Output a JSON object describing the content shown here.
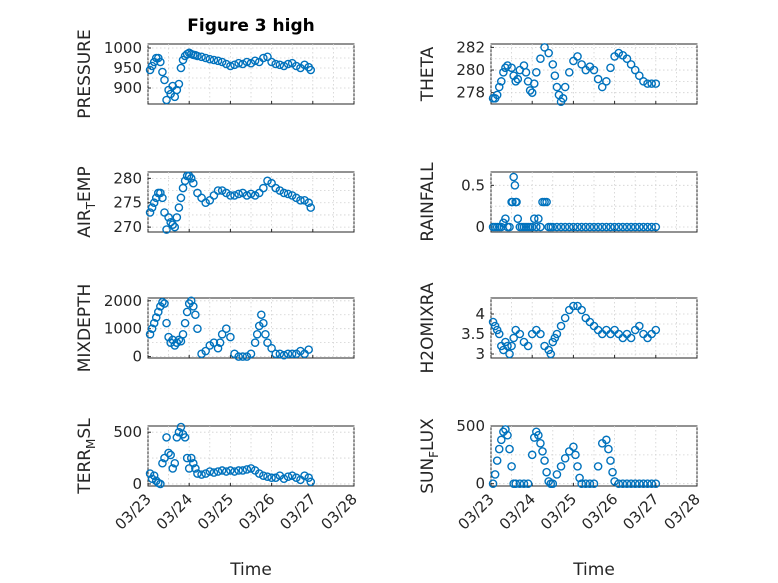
{
  "figure": {
    "title": "Figure 3 high",
    "xlabel": "Time",
    "xticks": [
      "03/23",
      "03/24",
      "03/25",
      "03/26",
      "03/27",
      "03/28"
    ],
    "accent_color": "#0072bd"
  },
  "chart_data": [
    {
      "id": "pressure",
      "type": "scatter",
      "ylabel": "PRESSURE",
      "ylim": [
        860,
        1010
      ],
      "yticks": [
        900,
        950,
        1000
      ],
      "series": [
        {
          "name": "PRESSURE",
          "x": [
            0.05,
            0.1,
            0.15,
            0.2,
            0.25,
            0.3,
            0.35,
            0.4,
            0.45,
            0.5,
            0.55,
            0.6,
            0.65,
            0.7,
            0.75,
            0.8,
            0.85,
            0.9,
            0.95,
            1.0,
            1.05,
            1.1,
            1.15,
            1.2,
            1.3,
            1.4,
            1.5,
            1.6,
            1.7,
            1.8,
            1.9,
            2.0,
            2.1,
            2.2,
            2.3,
            2.4,
            2.5,
            2.6,
            2.7,
            2.8,
            2.9,
            3.0,
            3.1,
            3.2,
            3.3,
            3.4,
            3.5,
            3.6,
            3.7,
            3.8,
            3.9,
            3.95
          ],
          "y": [
            945,
            955,
            965,
            975,
            975,
            965,
            940,
            920,
            870,
            895,
            885,
            905,
            878,
            895,
            910,
            950,
            970,
            980,
            985,
            988,
            985,
            983,
            982,
            980,
            978,
            975,
            972,
            970,
            968,
            965,
            960,
            955,
            958,
            962,
            960,
            965,
            962,
            968,
            965,
            975,
            978,
            965,
            960,
            958,
            955,
            960,
            962,
            955,
            950,
            958,
            952,
            945
          ]
        }
      ]
    },
    {
      "id": "theta",
      "type": "scatter",
      "ylabel": "THETA",
      "ylim": [
        277,
        282.3
      ],
      "yticks": [
        278,
        280,
        282
      ],
      "series": [
        {
          "name": "THETA",
          "x": [
            0.05,
            0.1,
            0.15,
            0.2,
            0.25,
            0.3,
            0.35,
            0.4,
            0.5,
            0.55,
            0.6,
            0.65,
            0.7,
            0.8,
            0.85,
            0.9,
            0.95,
            1.0,
            1.05,
            1.1,
            1.2,
            1.3,
            1.4,
            1.5,
            1.55,
            1.6,
            1.65,
            1.7,
            1.75,
            1.8,
            1.9,
            2.0,
            2.1,
            2.2,
            2.3,
            2.4,
            2.5,
            2.6,
            2.7,
            2.8,
            2.9,
            3.0,
            3.1,
            3.2,
            3.3,
            3.4,
            3.5,
            3.6,
            3.7,
            3.8,
            3.9,
            4.0
          ],
          "y": [
            277.5,
            277.5,
            277.8,
            278.5,
            279,
            279.8,
            280.2,
            280.4,
            280.2,
            279.5,
            279,
            279.2,
            280,
            280.4,
            279.8,
            279,
            278.2,
            278,
            278.8,
            279.8,
            281,
            282,
            281.5,
            280.5,
            279.5,
            278.5,
            277.8,
            277.2,
            277.5,
            278.5,
            279.8,
            280.8,
            281.2,
            280.5,
            280,
            280.3,
            280,
            279.2,
            278.5,
            279,
            280.2,
            281.2,
            281.5,
            281.3,
            281,
            280.5,
            280,
            279.5,
            279,
            278.8,
            278.8,
            278.8
          ]
        }
      ]
    },
    {
      "id": "air_temp",
      "type": "scatter",
      "ylabel": "AIR_TEMP",
      "ylim": [
        269,
        281.3
      ],
      "yticks": [
        270,
        275,
        280
      ],
      "series": [
        {
          "name": "AIR_TEMP",
          "x": [
            0.05,
            0.1,
            0.15,
            0.2,
            0.25,
            0.3,
            0.35,
            0.4,
            0.45,
            0.5,
            0.55,
            0.6,
            0.65,
            0.7,
            0.75,
            0.8,
            0.85,
            0.9,
            0.95,
            1.0,
            1.05,
            1.1,
            1.2,
            1.3,
            1.4,
            1.5,
            1.6,
            1.7,
            1.8,
            1.9,
            2.0,
            2.1,
            2.2,
            2.3,
            2.4,
            2.5,
            2.6,
            2.7,
            2.8,
            2.9,
            3.0,
            3.1,
            3.2,
            3.3,
            3.4,
            3.5,
            3.6,
            3.7,
            3.8,
            3.9,
            3.95
          ],
          "y": [
            273,
            274,
            275,
            276,
            277,
            277,
            276,
            273,
            269.5,
            272,
            271,
            270.5,
            270,
            272,
            274,
            276,
            278,
            279.5,
            280.5,
            280.5,
            280,
            279,
            277,
            276,
            275,
            275.5,
            276.5,
            277.5,
            277.5,
            277,
            276.5,
            276.5,
            276.8,
            277,
            276.5,
            276.8,
            276.5,
            277,
            278,
            279.5,
            279,
            278,
            277.5,
            277,
            276.8,
            276.5,
            276,
            275.5,
            275.5,
            275,
            274
          ]
        }
      ]
    },
    {
      "id": "rainfall",
      "type": "scatter",
      "ylabel": "RAINFALL",
      "ylim": [
        -0.06,
        0.66
      ],
      "yticks": [
        0,
        0.5
      ],
      "series": [
        {
          "name": "RAINFALL",
          "x": [
            0.05,
            0.1,
            0.15,
            0.2,
            0.25,
            0.3,
            0.35,
            0.4,
            0.45,
            0.5,
            0.52,
            0.55,
            0.58,
            0.6,
            0.62,
            0.65,
            0.7,
            0.75,
            0.8,
            0.85,
            0.9,
            0.95,
            1.0,
            1.05,
            1.1,
            1.15,
            1.2,
            1.25,
            1.3,
            1.35,
            1.4,
            1.45,
            1.5,
            1.6,
            1.7,
            1.8,
            1.9,
            2.0,
            2.1,
            2.2,
            2.3,
            2.4,
            2.5,
            2.6,
            2.7,
            2.8,
            2.9,
            3.0,
            3.1,
            3.2,
            3.3,
            3.4,
            3.5,
            3.6,
            3.7,
            3.8,
            3.9,
            4.0
          ],
          "y": [
            0,
            0,
            0,
            0,
            0,
            0.05,
            0.1,
            0,
            0,
            0.3,
            0.3,
            0.6,
            0.5,
            0.3,
            0.3,
            0.1,
            0,
            0,
            0,
            0,
            0,
            0,
            0,
            0.1,
            0,
            0.1,
            0,
            0.3,
            0.3,
            0.3,
            0,
            0,
            0,
            0,
            0,
            0,
            0,
            0,
            0,
            0,
            0,
            0,
            0,
            0,
            0,
            0,
            0,
            0,
            0,
            0,
            0,
            0,
            0,
            0,
            0,
            0,
            0,
            0
          ]
        }
      ]
    },
    {
      "id": "mixdepth",
      "type": "scatter",
      "ylabel": "MIXDEPTH",
      "ylim": [
        -50,
        2100
      ],
      "yticks": [
        0,
        1000,
        2000
      ],
      "series": [
        {
          "name": "MIXDEPTH",
          "x": [
            0.05,
            0.1,
            0.15,
            0.2,
            0.25,
            0.3,
            0.35,
            0.4,
            0.45,
            0.5,
            0.55,
            0.6,
            0.65,
            0.7,
            0.75,
            0.8,
            0.85,
            0.9,
            0.95,
            1.0,
            1.05,
            1.1,
            1.15,
            1.2,
            1.3,
            1.4,
            1.5,
            1.6,
            1.7,
            1.75,
            1.8,
            1.9,
            2.0,
            2.1,
            2.2,
            2.3,
            2.4,
            2.5,
            2.6,
            2.65,
            2.7,
            2.75,
            2.8,
            2.85,
            2.9,
            3.0,
            3.1,
            3.2,
            3.3,
            3.4,
            3.5,
            3.6,
            3.7,
            3.8,
            3.9
          ],
          "y": [
            800,
            1000,
            1200,
            1400,
            1600,
            1800,
            1950,
            1900,
            1200,
            700,
            500,
            600,
            400,
            500,
            600,
            550,
            800,
            1200,
            1600,
            1900,
            2000,
            1800,
            1500,
            1000,
            100,
            200,
            400,
            500,
            300,
            500,
            800,
            1000,
            700,
            100,
            0,
            0,
            0,
            100,
            500,
            800,
            1100,
            1500,
            1200,
            800,
            500,
            300,
            100,
            100,
            50,
            100,
            100,
            100,
            200,
            100,
            250
          ]
        }
      ]
    },
    {
      "id": "h2omixra",
      "type": "scatter",
      "ylabel": "H2OMIXRA",
      "ylim": [
        2.9,
        4.4
      ],
      "yticks": [
        3,
        3.5,
        4
      ],
      "series": [
        {
          "name": "H2OMIXRA",
          "x": [
            0.05,
            0.1,
            0.15,
            0.2,
            0.25,
            0.3,
            0.35,
            0.4,
            0.45,
            0.5,
            0.55,
            0.6,
            0.7,
            0.8,
            0.9,
            1.0,
            1.1,
            1.2,
            1.3,
            1.4,
            1.45,
            1.5,
            1.55,
            1.6,
            1.7,
            1.8,
            1.9,
            2.0,
            2.1,
            2.2,
            2.3,
            2.4,
            2.5,
            2.6,
            2.7,
            2.8,
            2.9,
            3.0,
            3.1,
            3.2,
            3.3,
            3.4,
            3.5,
            3.6,
            3.7,
            3.8,
            3.9,
            4.0
          ],
          "y": [
            3.8,
            3.7,
            3.6,
            3.5,
            3.2,
            3.1,
            3.3,
            3.2,
            3.0,
            3.2,
            3.4,
            3.6,
            3.5,
            3.3,
            3.2,
            3.5,
            3.6,
            3.5,
            3.2,
            3.1,
            3.0,
            3.3,
            3.4,
            3.5,
            3.7,
            3.9,
            4.1,
            4.2,
            4.2,
            4.1,
            3.9,
            3.8,
            3.7,
            3.6,
            3.5,
            3.6,
            3.5,
            3.6,
            3.5,
            3.4,
            3.5,
            3.4,
            3.6,
            3.7,
            3.5,
            3.4,
            3.5,
            3.6
          ]
        }
      ]
    },
    {
      "id": "terr_msl",
      "type": "scatter",
      "ylabel": "TERR_MSL",
      "ylim": [
        -20,
        560
      ],
      "yticks": [
        0,
        500
      ],
      "series": [
        {
          "name": "TERR_MSL",
          "x": [
            0.05,
            0.1,
            0.15,
            0.2,
            0.25,
            0.3,
            0.35,
            0.4,
            0.45,
            0.5,
            0.55,
            0.6,
            0.65,
            0.7,
            0.75,
            0.8,
            0.85,
            0.9,
            0.95,
            1.0,
            1.05,
            1.1,
            1.15,
            1.2,
            1.3,
            1.4,
            1.5,
            1.6,
            1.7,
            1.8,
            1.9,
            2.0,
            2.1,
            2.2,
            2.3,
            2.4,
            2.5,
            2.6,
            2.7,
            2.8,
            2.9,
            3.0,
            3.1,
            3.2,
            3.3,
            3.4,
            3.5,
            3.6,
            3.7,
            3.8,
            3.9,
            3.95
          ],
          "y": [
            100,
            50,
            80,
            30,
            10,
            0,
            200,
            250,
            450,
            300,
            280,
            150,
            200,
            450,
            500,
            550,
            480,
            450,
            250,
            150,
            250,
            200,
            150,
            100,
            90,
            100,
            120,
            110,
            120,
            130,
            120,
            130,
            120,
            130,
            130,
            140,
            150,
            130,
            100,
            80,
            70,
            60,
            60,
            80,
            50,
            70,
            80,
            60,
            40,
            80,
            60,
            20
          ]
        }
      ]
    },
    {
      "id": "sun_flux",
      "type": "scatter",
      "ylabel": "SUN_FLUX",
      "ylim": [
        -20,
        500
      ],
      "yticks": [
        0,
        500
      ],
      "series": [
        {
          "name": "SUN_FLUX",
          "x": [
            0.05,
            0.1,
            0.15,
            0.2,
            0.25,
            0.3,
            0.35,
            0.4,
            0.45,
            0.5,
            0.55,
            0.6,
            0.7,
            0.8,
            0.9,
            1.0,
            1.05,
            1.1,
            1.15,
            1.2,
            1.25,
            1.3,
            1.35,
            1.4,
            1.45,
            1.5,
            1.6,
            1.7,
            1.8,
            1.9,
            2.0,
            2.05,
            2.1,
            2.15,
            2.2,
            2.3,
            2.4,
            2.5,
            2.6,
            2.7,
            2.8,
            2.85,
            2.9,
            2.95,
            3.0,
            3.1,
            3.2,
            3.3,
            3.4,
            3.5,
            3.6,
            3.7,
            3.8,
            3.9,
            4.0
          ],
          "y": [
            0,
            80,
            200,
            300,
            380,
            450,
            470,
            420,
            300,
            150,
            0,
            0,
            0,
            0,
            0,
            250,
            400,
            450,
            420,
            350,
            280,
            200,
            100,
            20,
            0,
            0,
            80,
            150,
            220,
            280,
            320,
            250,
            150,
            50,
            0,
            0,
            0,
            0,
            150,
            350,
            380,
            300,
            200,
            100,
            20,
            0,
            0,
            0,
            0,
            0,
            0,
            0,
            0,
            0,
            0
          ]
        }
      ]
    }
  ]
}
